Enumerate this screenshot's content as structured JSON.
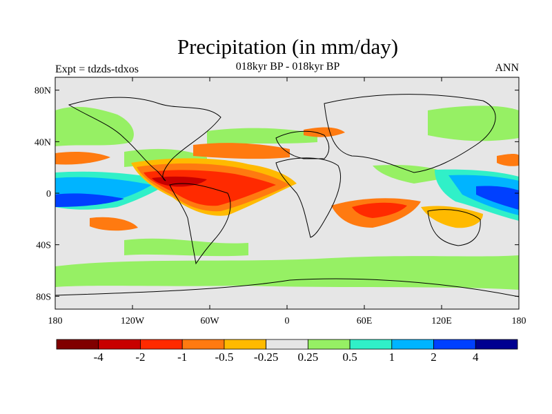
{
  "title": "Precipitation (in mm/day)",
  "subtitle": "018kyr BP - 018kyr BP",
  "experiment": "Expt = tdzds-tdxos",
  "season": "ANN",
  "map": {
    "y_ticks": [
      {
        "label": "80N",
        "lat": 80
      },
      {
        "label": "40N",
        "lat": 40
      },
      {
        "label": "0",
        "lat": 0
      },
      {
        "label": "40S",
        "lat": -40
      },
      {
        "label": "80S",
        "lat": -80
      }
    ],
    "x_ticks": [
      {
        "label": "180",
        "lon": -180
      },
      {
        "label": "120W",
        "lon": -120
      },
      {
        "label": "60W",
        "lon": -60
      },
      {
        "label": "0",
        "lon": 0
      },
      {
        "label": "60E",
        "lon": 60
      },
      {
        "label": "120E",
        "lon": 120
      },
      {
        "label": "180",
        "lon": 180
      }
    ],
    "lon_range": [
      -180,
      180
    ],
    "lat_range": [
      -90,
      90
    ]
  },
  "colorbar": {
    "colors": [
      "#800000",
      "#c80000",
      "#ff2a00",
      "#ff7a10",
      "#ffba00",
      "#e6e6e6",
      "#96f064",
      "#30f0c8",
      "#00b4ff",
      "#0040ff",
      "#000090"
    ],
    "labels": [
      "-4",
      "-2",
      "-1",
      "-0.5",
      "-0.25",
      "0.25",
      "0.5",
      "1",
      "2",
      "4"
    ]
  },
  "colors": {
    "background": "#e6e6e6",
    "dry_strong": "#c80000",
    "dry": "#ff2a00",
    "dry_mod": "#ff7a10",
    "dry_weak": "#ffba00",
    "wet_weak": "#96f064",
    "wet": "#30f0c8",
    "wet_mod": "#00b4ff",
    "wet_strong": "#0040ff",
    "wet_extreme": "#000090"
  }
}
